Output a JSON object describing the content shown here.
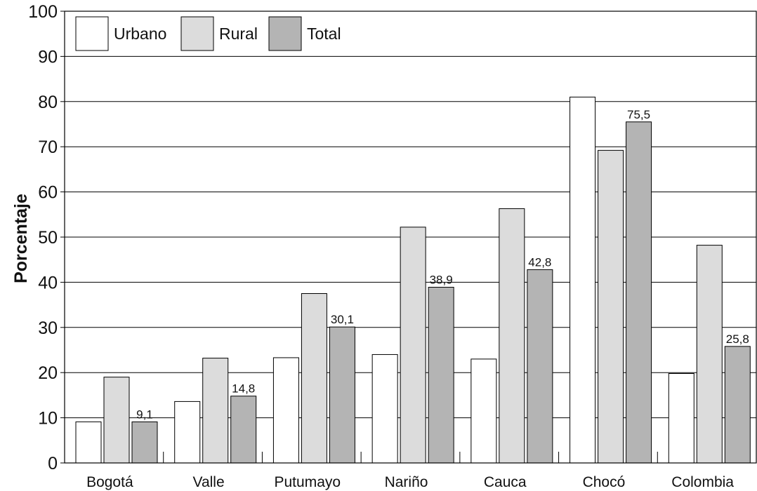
{
  "chart_data": {
    "type": "bar",
    "title": "",
    "xlabel": "",
    "ylabel": "Porcentaje",
    "ylim": [
      0,
      100
    ],
    "yticks": [
      0,
      10,
      20,
      30,
      40,
      50,
      60,
      70,
      80,
      90,
      100
    ],
    "grid": true,
    "legend_position": "top-left",
    "categories": [
      "Bogotá",
      "Valle",
      "Putumayo",
      "Nariño",
      "Cauca",
      "Chocó",
      "Colombia"
    ],
    "series": [
      {
        "name": "Urbano",
        "color": "#ffffff",
        "values": [
          9.1,
          13.6,
          23.3,
          24.0,
          23.0,
          81.0,
          19.8
        ]
      },
      {
        "name": "Rural",
        "color": "#dcdcdc",
        "values": [
          19.0,
          23.2,
          37.5,
          52.2,
          56.3,
          69.2,
          48.2
        ]
      },
      {
        "name": "Total",
        "color": "#b4b4b4",
        "values": [
          9.1,
          14.8,
          30.1,
          38.9,
          42.8,
          75.5,
          25.8
        ]
      }
    ],
    "data_labels": [
      "9,1",
      "14,8",
      "30,1",
      "38,9",
      "42,8",
      "75,5",
      "25,8"
    ]
  }
}
